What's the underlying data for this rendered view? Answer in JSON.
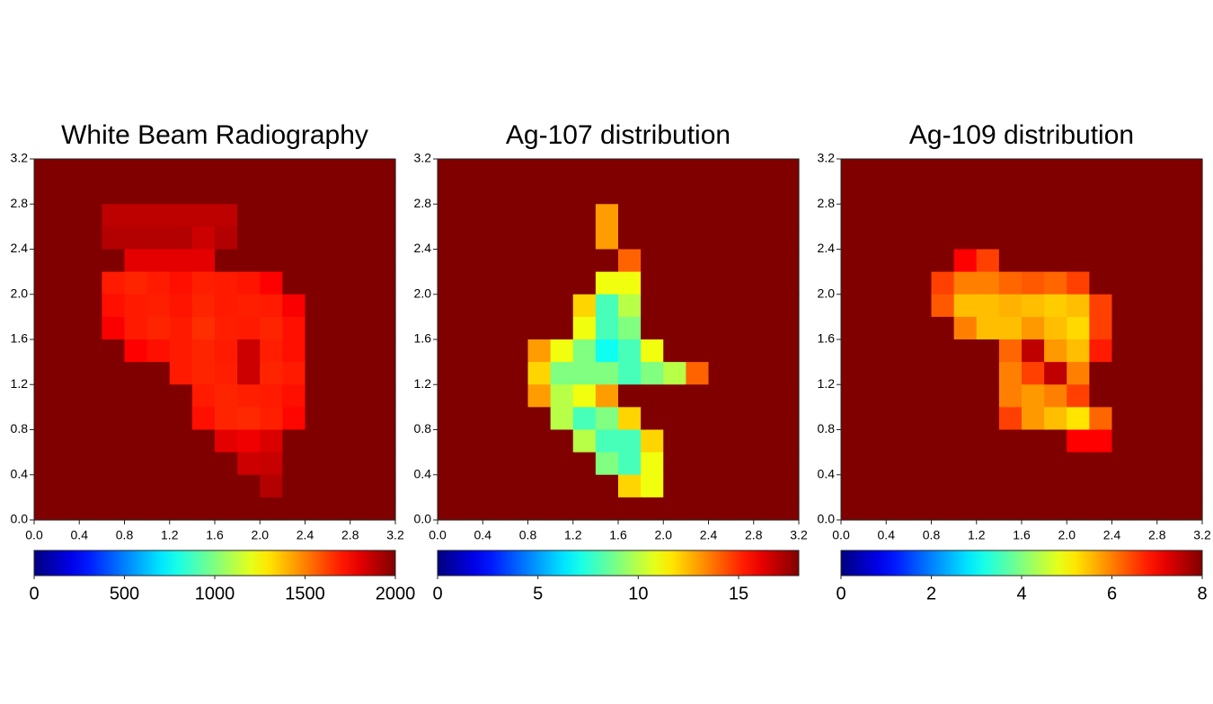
{
  "chart_data": [
    {
      "type": "heatmap",
      "title": "White Beam Radiography",
      "colormap": "jet",
      "xlim": [
        0,
        3.2
      ],
      "ylim": [
        0,
        3.2
      ],
      "xticks": [
        {
          "value": 0,
          "label": "0.0"
        },
        0.4,
        0.8,
        1.2,
        1.6,
        {
          "value": 2,
          "label": "2.0"
        },
        2.4,
        2.8,
        3.2
      ],
      "yticks": [
        {
          "value": 0,
          "label": "0.0"
        },
        0.4,
        0.8,
        1.2,
        1.6,
        {
          "value": 2,
          "label": "2.0"
        },
        2.4,
        2.8,
        3.2
      ],
      "zlim": [
        0,
        2000
      ],
      "zticks": [
        0,
        500,
        1000,
        1500,
        2000
      ],
      "z": [
        [
          2000,
          2000,
          2000,
          2000,
          2000,
          2000,
          2000,
          2000,
          2000,
          2000,
          2000,
          2000,
          2000,
          2000,
          2000,
          2000
        ],
        [
          2000,
          2000,
          2000,
          2000,
          2000,
          2000,
          2000,
          2000,
          2000,
          2000,
          2000,
          2000,
          2000,
          2000,
          2000,
          2000
        ],
        [
          2000,
          2000,
          2000,
          1880,
          1880,
          1880,
          1880,
          1880,
          1880,
          2000,
          2000,
          2000,
          2000,
          2000,
          2000,
          2000
        ],
        [
          2000,
          2000,
          2000,
          1900,
          1900,
          1900,
          1900,
          1850,
          1900,
          2000,
          2000,
          2000,
          2000,
          2000,
          2000,
          2000
        ],
        [
          2000,
          2000,
          2000,
          2000,
          1800,
          1800,
          1800,
          1800,
          2000,
          2000,
          2000,
          2000,
          2000,
          2000,
          2000,
          2000
        ],
        [
          2000,
          2000,
          2000,
          1700,
          1680,
          1700,
          1720,
          1690,
          1700,
          1710,
          1750,
          2000,
          2000,
          2000,
          2000,
          2000
        ],
        [
          2000,
          2000,
          2000,
          1720,
          1700,
          1690,
          1710,
          1680,
          1700,
          1690,
          1700,
          1760,
          2000,
          2000,
          2000,
          2000
        ],
        [
          2000,
          2000,
          2000,
          1760,
          1700,
          1680,
          1700,
          1660,
          1690,
          1700,
          1680,
          1720,
          2000,
          2000,
          2000,
          2000
        ],
        [
          2000,
          2000,
          2000,
          2000,
          1750,
          1720,
          1700,
          1680,
          1700,
          1850,
          1690,
          1720,
          2000,
          2000,
          2000,
          2000
        ],
        [
          2000,
          2000,
          2000,
          2000,
          2000,
          2000,
          1700,
          1680,
          1690,
          1850,
          1680,
          1700,
          2000,
          2000,
          2000,
          2000
        ],
        [
          2000,
          2000,
          2000,
          2000,
          2000,
          2000,
          2000,
          1700,
          1680,
          1690,
          1700,
          1720,
          2000,
          2000,
          2000,
          2000
        ],
        [
          2000,
          2000,
          2000,
          2000,
          2000,
          2000,
          2000,
          1720,
          1680,
          1670,
          1690,
          1740,
          2000,
          2000,
          2000,
          2000
        ],
        [
          2000,
          2000,
          2000,
          2000,
          2000,
          2000,
          2000,
          2000,
          1800,
          1780,
          1820,
          2000,
          2000,
          2000,
          2000,
          2000
        ],
        [
          2000,
          2000,
          2000,
          2000,
          2000,
          2000,
          2000,
          2000,
          2000,
          1850,
          1860,
          2000,
          2000,
          2000,
          2000,
          2000
        ],
        [
          2000,
          2000,
          2000,
          2000,
          2000,
          2000,
          2000,
          2000,
          2000,
          2000,
          1900,
          2000,
          2000,
          2000,
          2000,
          2000
        ],
        [
          2000,
          2000,
          2000,
          2000,
          2000,
          2000,
          2000,
          2000,
          2000,
          2000,
          2000,
          2000,
          2000,
          2000,
          2000,
          2000
        ]
      ]
    },
    {
      "type": "heatmap",
      "title": "Ag-107 distribution",
      "colormap": "jet",
      "xlim": [
        0,
        3.2
      ],
      "ylim": [
        0,
        3.2
      ],
      "xticks": [
        {
          "value": 0,
          "label": "0.0"
        },
        0.4,
        0.8,
        1.2,
        1.6,
        {
          "value": 2,
          "label": "2.0"
        },
        2.4,
        2.8,
        3.2
      ],
      "yticks": [
        {
          "value": 0,
          "label": "0.0"
        },
        0.4,
        0.8,
        1.2,
        1.6,
        {
          "value": 2,
          "label": "2.0"
        },
        2.4,
        2.8,
        3.2
      ],
      "zlim": [
        0,
        18
      ],
      "zticks": [
        0,
        5,
        10,
        15
      ],
      "z": [
        [
          18,
          18,
          18,
          18,
          18,
          18,
          18,
          18,
          18,
          18,
          18,
          18,
          18,
          18,
          18,
          18
        ],
        [
          18,
          18,
          18,
          18,
          18,
          18,
          18,
          18,
          18,
          18,
          18,
          18,
          18,
          18,
          18,
          18
        ],
        [
          18,
          18,
          18,
          18,
          18,
          18,
          18,
          13,
          18,
          18,
          18,
          18,
          18,
          18,
          18,
          18
        ],
        [
          18,
          18,
          18,
          18,
          18,
          18,
          18,
          13,
          18,
          18,
          18,
          18,
          18,
          18,
          18,
          18
        ],
        [
          18,
          18,
          18,
          18,
          18,
          18,
          18,
          18,
          14,
          18,
          18,
          18,
          18,
          18,
          18,
          18
        ],
        [
          18,
          18,
          18,
          18,
          18,
          18,
          18,
          11,
          11,
          18,
          18,
          18,
          18,
          18,
          18,
          18
        ],
        [
          18,
          18,
          18,
          18,
          18,
          18,
          12,
          8,
          10,
          18,
          18,
          18,
          18,
          18,
          18,
          18
        ],
        [
          18,
          18,
          18,
          18,
          18,
          18,
          11,
          8,
          9,
          18,
          18,
          18,
          18,
          18,
          18,
          18
        ],
        [
          18,
          18,
          18,
          18,
          13,
          11,
          9,
          7,
          8,
          11,
          18,
          18,
          18,
          18,
          18,
          18
        ],
        [
          18,
          18,
          18,
          18,
          12,
          9,
          9,
          9,
          8,
          9,
          10,
          14,
          18,
          18,
          18,
          18
        ],
        [
          18,
          18,
          18,
          18,
          13,
          10,
          11,
          13,
          18,
          18,
          18,
          18,
          18,
          18,
          18,
          18
        ],
        [
          18,
          18,
          18,
          18,
          18,
          10,
          8,
          9,
          12,
          18,
          18,
          18,
          18,
          18,
          18,
          18
        ],
        [
          18,
          18,
          18,
          18,
          18,
          18,
          10,
          8,
          8,
          12,
          18,
          18,
          18,
          18,
          18,
          18
        ],
        [
          18,
          18,
          18,
          18,
          18,
          18,
          18,
          9,
          8,
          11,
          18,
          18,
          18,
          18,
          18,
          18
        ],
        [
          18,
          18,
          18,
          18,
          18,
          18,
          18,
          18,
          12,
          11,
          18,
          18,
          18,
          18,
          18,
          18
        ],
        [
          18,
          18,
          18,
          18,
          18,
          18,
          18,
          18,
          18,
          18,
          18,
          18,
          18,
          18,
          18,
          18
        ]
      ]
    },
    {
      "type": "heatmap",
      "title": "Ag-109 distribution",
      "colormap": "jet",
      "xlim": [
        0,
        3.2
      ],
      "ylim": [
        0,
        3.2
      ],
      "xticks": [
        {
          "value": 0,
          "label": "0.0"
        },
        0.4,
        0.8,
        1.2,
        1.6,
        {
          "value": 2,
          "label": "2.0"
        },
        2.4,
        2.8,
        3.2
      ],
      "yticks": [
        {
          "value": 0,
          "label": "0.0"
        },
        0.4,
        0.8,
        1.2,
        1.6,
        {
          "value": 2,
          "label": "2.0"
        },
        2.4,
        2.8,
        3.2
      ],
      "zlim": [
        0,
        8
      ],
      "zticks": [
        0,
        2,
        4,
        6,
        8
      ],
      "z": [
        [
          8,
          8,
          8,
          8,
          8,
          8,
          8,
          8,
          8,
          8,
          8,
          8,
          8,
          8,
          8,
          8
        ],
        [
          8,
          8,
          8,
          8,
          8,
          8,
          8,
          8,
          8,
          8,
          8,
          8,
          8,
          8,
          8,
          8
        ],
        [
          8,
          8,
          8,
          8,
          8,
          8,
          8,
          8,
          8,
          8,
          8,
          8,
          8,
          8,
          8,
          8
        ],
        [
          8,
          8,
          8,
          8,
          8,
          8,
          8,
          8,
          8,
          8,
          8,
          8,
          8,
          8,
          8,
          8
        ],
        [
          8,
          8,
          8,
          8,
          8,
          7,
          6.5,
          8,
          8,
          8,
          8,
          8,
          8,
          8,
          8,
          8
        ],
        [
          8,
          8,
          8,
          8,
          6.5,
          6,
          6,
          6.2,
          6.3,
          6.2,
          6.5,
          8,
          8,
          8,
          8,
          8
        ],
        [
          8,
          8,
          8,
          8,
          6.3,
          5.5,
          5.5,
          5.6,
          5.5,
          5.4,
          5.5,
          6.5,
          8,
          8,
          8,
          8
        ],
        [
          8,
          8,
          8,
          8,
          8,
          6,
          5.5,
          5.5,
          5.8,
          5.5,
          5.3,
          6.5,
          8,
          8,
          8,
          8
        ],
        [
          8,
          8,
          8,
          8,
          8,
          8,
          8,
          6.2,
          7.5,
          5.8,
          5.5,
          6.8,
          8,
          8,
          8,
          8
        ],
        [
          8,
          8,
          8,
          8,
          8,
          8,
          8,
          6,
          6.5,
          7.5,
          6,
          8,
          8,
          8,
          8,
          8
        ],
        [
          8,
          8,
          8,
          8,
          8,
          8,
          8,
          6,
          5.8,
          6,
          6.5,
          8,
          8,
          8,
          8,
          8
        ],
        [
          8,
          8,
          8,
          8,
          8,
          8,
          8,
          6.5,
          5.8,
          5.5,
          5.2,
          6.2,
          8,
          8,
          8,
          8
        ],
        [
          8,
          8,
          8,
          8,
          8,
          8,
          8,
          8,
          8,
          8,
          7,
          7,
          8,
          8,
          8,
          8
        ],
        [
          8,
          8,
          8,
          8,
          8,
          8,
          8,
          8,
          8,
          8,
          8,
          8,
          8,
          8,
          8,
          8
        ],
        [
          8,
          8,
          8,
          8,
          8,
          8,
          8,
          8,
          8,
          8,
          8,
          8,
          8,
          8,
          8,
          8
        ],
        [
          8,
          8,
          8,
          8,
          8,
          8,
          8,
          8,
          8,
          8,
          8,
          8,
          8,
          8,
          8,
          8
        ]
      ]
    }
  ]
}
